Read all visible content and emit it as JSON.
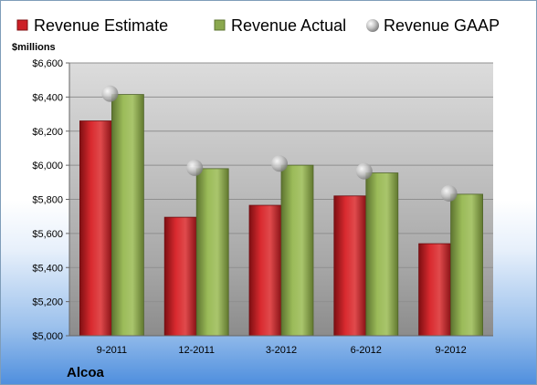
{
  "chart_data": {
    "type": "bar",
    "company": "Alcoa",
    "ylabel": "$millions",
    "ylim": [
      5000,
      6600
    ],
    "yticks": [
      5000,
      5200,
      5400,
      5600,
      5800,
      6000,
      6200,
      6400,
      6600
    ],
    "ytick_labels": [
      "$5,000",
      "$5,200",
      "$5,400",
      "$5,600",
      "$5,800",
      "$6,000",
      "$6,200",
      "$6,400",
      "$6,600"
    ],
    "categories": [
      "9-2011",
      "12-2011",
      "3-2012",
      "6-2012",
      "9-2012"
    ],
    "series": [
      {
        "name": "Revenue Estimate",
        "mark": "bar",
        "color": "#cc1f26",
        "values": [
          6260,
          5695,
          5765,
          5820,
          5540
        ]
      },
      {
        "name": "Revenue Actual",
        "mark": "bar",
        "color": "#8aa84e",
        "values": [
          6415,
          5980,
          6000,
          5955,
          5830
        ]
      },
      {
        "name": "Revenue GAAP",
        "mark": "marker",
        "color": "#b8b8b8",
        "values": [
          6420,
          5985,
          6010,
          5965,
          5835
        ]
      }
    ],
    "legend_position": "top",
    "grid": true
  }
}
